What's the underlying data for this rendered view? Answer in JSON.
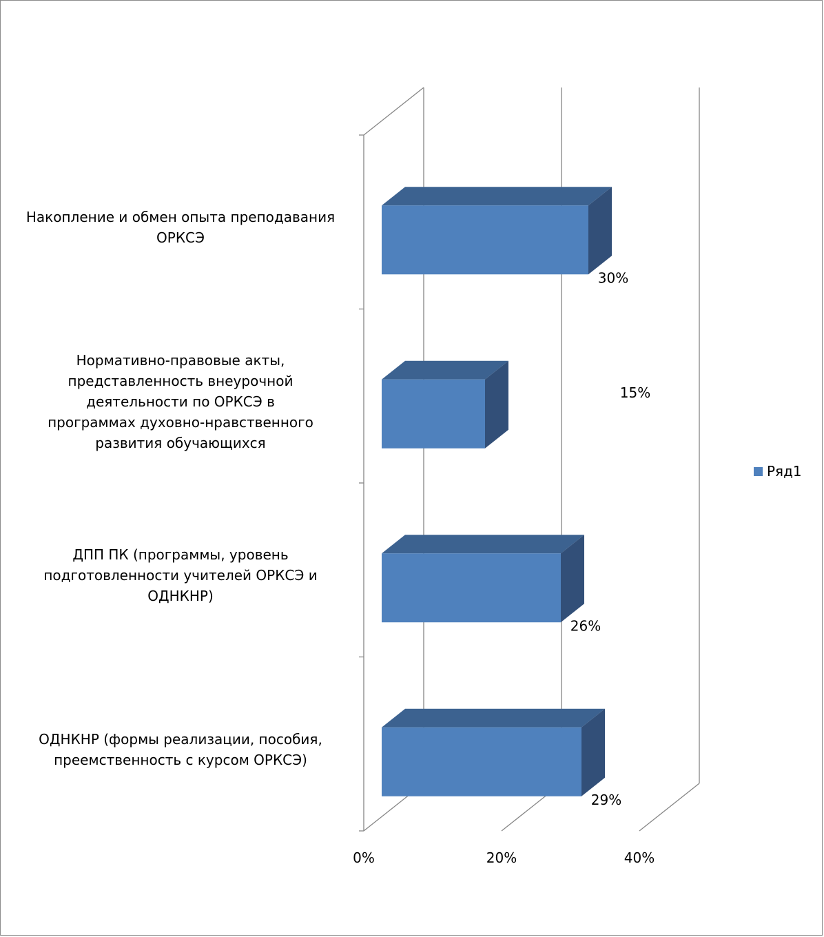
{
  "chart_data": {
    "type": "bar",
    "orientation": "horizontal",
    "categories": [
      "Накопление и обмен опыта преподавания ОРКСЭ",
      "Нормативно-правовые акты, представленность внеурочной деятельности по ОРКСЭ в программах духовно-нравственного развития обучающихся",
      "ДПП ПК (программы, уровень подготовленности учителей ОРКСЭ и ОДНКНР)",
      "ОДНКНР (формы реализации, пособия, преемственность с курсом ОРКСЭ)"
    ],
    "series": [
      {
        "name": "Ряд1",
        "values": [
          0.3,
          0.15,
          0.26,
          0.29
        ]
      }
    ],
    "data_labels": [
      "30%",
      "15%",
      "26%",
      "29%"
    ],
    "x_ticks": [
      "0%",
      "20%",
      "40%"
    ],
    "xlim": [
      0,
      0.4
    ],
    "grid": true,
    "legend": "right",
    "colors": {
      "bar_front": "#4f81bd",
      "bar_top": "#3c6290",
      "bar_side": "#324f78"
    }
  }
}
